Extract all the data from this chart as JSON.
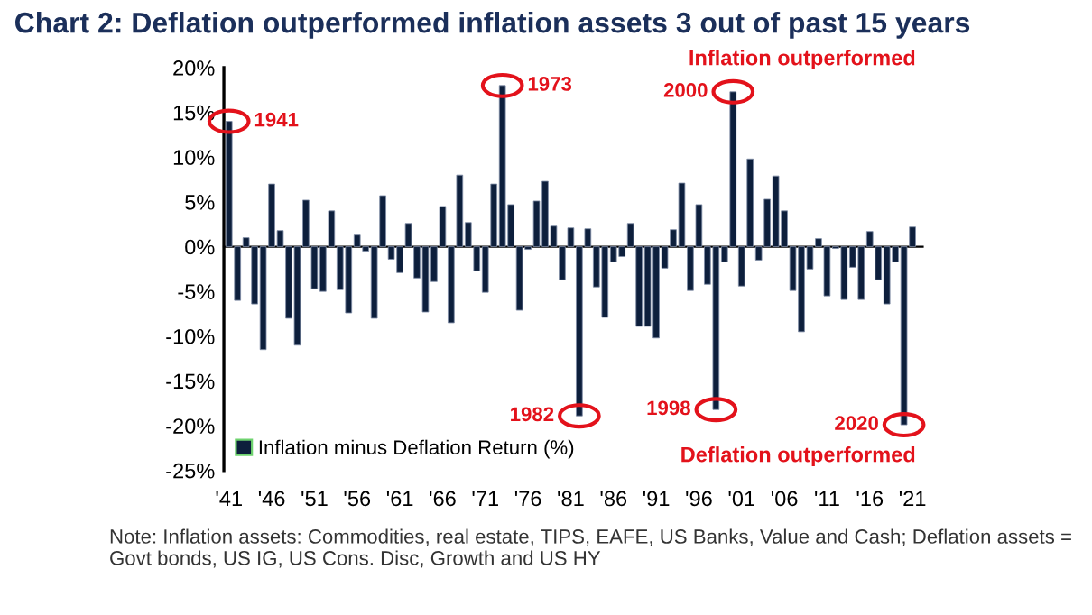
{
  "chart_data": {
    "type": "bar",
    "title": "Chart 2: Deflation outperformed inflation assets 3 out of past 15 years",
    "x": [
      1941,
      1942,
      1943,
      1944,
      1945,
      1946,
      1947,
      1948,
      1949,
      1950,
      1951,
      1952,
      1953,
      1954,
      1955,
      1956,
      1957,
      1958,
      1959,
      1960,
      1961,
      1962,
      1963,
      1964,
      1965,
      1966,
      1967,
      1968,
      1969,
      1970,
      1971,
      1972,
      1973,
      1974,
      1975,
      1976,
      1977,
      1978,
      1979,
      1980,
      1981,
      1982,
      1983,
      1984,
      1985,
      1986,
      1987,
      1988,
      1989,
      1990,
      1991,
      1992,
      1993,
      1994,
      1995,
      1996,
      1997,
      1998,
      1999,
      2000,
      2001,
      2002,
      2003,
      2004,
      2005,
      2006,
      2007,
      2008,
      2009,
      2010,
      2011,
      2012,
      2013,
      2014,
      2015,
      2016,
      2017,
      2018,
      2019,
      2020,
      2021
    ],
    "series": [
      {
        "name": "Inflation minus Deflation Return (%)",
        "color": "#0d1f3c",
        "values": [
          14,
          -6,
          1,
          -6.4,
          -11.5,
          7,
          1.8,
          -8,
          -11,
          5.2,
          -4.7,
          -5,
          4,
          -4.8,
          -7.4,
          1.3,
          -0.5,
          -8,
          5.7,
          -1.4,
          -2.9,
          2.6,
          -3.5,
          -7.3,
          -3.9,
          4.5,
          -8.5,
          8,
          2.7,
          -2.7,
          -5.1,
          7,
          18,
          4.7,
          -7.1,
          -0.3,
          5.1,
          7.3,
          2.3,
          -3.7,
          2.1,
          -18.9,
          2,
          -4.5,
          -7.9,
          -1.7,
          -1.1,
          2.6,
          -8.9,
          -8.9,
          -10.2,
          -2.4,
          1.9,
          7.1,
          -4.9,
          4.7,
          -4.2,
          -18.2,
          -1.7,
          17.3,
          -4.4,
          9.8,
          -1.5,
          5.3,
          7.9,
          4,
          -4.9,
          -9.5,
          -2.5,
          0.9,
          -5.5,
          -0.2,
          -5.9,
          -2.3,
          -5.9,
          1.7,
          -3.7,
          -6.4,
          -1.7,
          -19.9,
          2.2
        ]
      }
    ],
    "xlim": [
      1940.4,
      2022.2
    ],
    "xticks": [
      {
        "value": 1941,
        "label": "'41"
      },
      {
        "value": 1946,
        "label": "'46"
      },
      {
        "value": 1951,
        "label": "'51"
      },
      {
        "value": 1956,
        "label": "'56"
      },
      {
        "value": 1961,
        "label": "'61"
      },
      {
        "value": 1966,
        "label": "'66"
      },
      {
        "value": 1971,
        "label": "'71"
      },
      {
        "value": 1976,
        "label": "'76"
      },
      {
        "value": 1981,
        "label": "'81"
      },
      {
        "value": 1986,
        "label": "'86"
      },
      {
        "value": 1991,
        "label": "'91"
      },
      {
        "value": 1996,
        "label": "'96"
      },
      {
        "value": 2001,
        "label": "'01"
      },
      {
        "value": 2006,
        "label": "'06"
      },
      {
        "value": 2011,
        "label": "'11"
      },
      {
        "value": 2016,
        "label": "'16"
      },
      {
        "value": 2021,
        "label": "'21"
      }
    ],
    "ylim": [
      -25,
      20
    ],
    "yticks": [
      {
        "value": 20,
        "label": "20%"
      },
      {
        "value": 15,
        "label": "15%"
      },
      {
        "value": 10,
        "label": "10%"
      },
      {
        "value": 5,
        "label": "5%"
      },
      {
        "value": 0,
        "label": "0%"
      },
      {
        "value": -5,
        "label": "-5%"
      },
      {
        "value": -10,
        "label": "-10%"
      },
      {
        "value": -15,
        "label": "-15%"
      },
      {
        "value": -20,
        "label": "-20%"
      },
      {
        "value": -25,
        "label": "-25%"
      }
    ],
    "legend": "bottom left",
    "annotations": [
      {
        "text": "1941",
        "x": 1941,
        "y": 14
      },
      {
        "text": "1973",
        "x": 1973,
        "y": 18
      },
      {
        "text": "1982",
        "x": 1982,
        "y": -18.9
      },
      {
        "text": "1998",
        "x": 1998,
        "y": -18.2
      },
      {
        "text": "2000",
        "x": 2000,
        "y": 17.3
      },
      {
        "text": "2020",
        "x": 2020,
        "y": -19.9
      },
      "Inflation outperformed",
      "Deflation outperformed",
      "Note: Inflation assets: Commodities, real estate, TIPS, EAFE, US Banks, Value and Cash; Deflation assets = Govt bonds, US IG, US Cons. Disc, Growth and US HY"
    ]
  }
}
